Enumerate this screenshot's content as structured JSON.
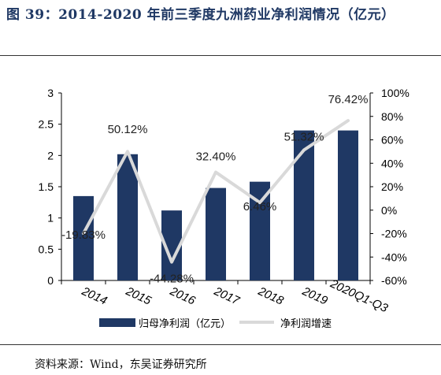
{
  "title": "图 39：2014-2020 年前三季度九洲药业净利润情况（亿元）",
  "source": "资料来源：Wind，东吴证券研究所",
  "colors": {
    "bar": "#1f3864",
    "line": "#d9d9d9",
    "title": "#1f3864"
  },
  "chart_data": {
    "type": "bar",
    "categories": [
      "2014",
      "2015",
      "2016",
      "2017",
      "2018",
      "2019",
      "2020Q1-Q3"
    ],
    "series": [
      {
        "name": "归母净利润（亿元）",
        "type": "bar",
        "axis": "left",
        "values": [
          1.35,
          2.02,
          1.12,
          1.48,
          1.58,
          2.4,
          2.4
        ]
      },
      {
        "name": "净利润增速",
        "type": "line",
        "axis": "right",
        "values": [
          -19.83,
          50.12,
          -44.28,
          32.4,
          6.46,
          51.32,
          76.42
        ],
        "labels": [
          "-19.83%",
          "50.12%",
          "-44.28%",
          "32.40%",
          "6.46%",
          "51.32%",
          "76.42%"
        ]
      }
    ],
    "y_left": {
      "min": 0,
      "max": 3,
      "ticks": [
        "0",
        "0.5",
        "1",
        "1.5",
        "2",
        "2.5",
        "3"
      ]
    },
    "y_right": {
      "min": -60,
      "max": 100,
      "ticks": [
        "-60%",
        "-40%",
        "-20%",
        "0%",
        "20%",
        "40%",
        "60%",
        "80%",
        "100%"
      ]
    },
    "grid": false,
    "legend_position": "bottom"
  }
}
